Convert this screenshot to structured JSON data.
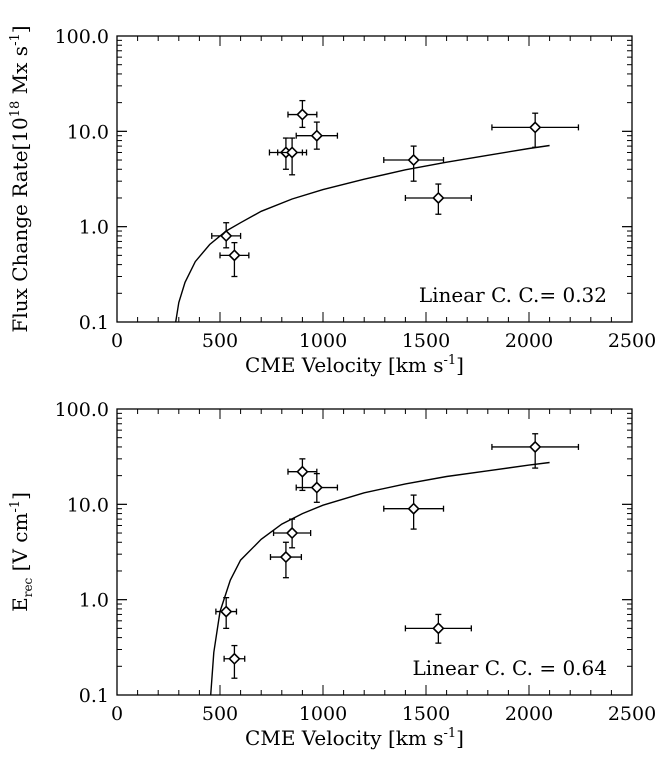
{
  "chart_data": [
    {
      "type": "scatter",
      "xlabel": "CME Velocity [km s",
      "xlabel_sup": "-1",
      "xlabel_end": "]",
      "ylabel": "Flux Change Rate[10",
      "ylabel_sup1": "18",
      "ylabel_mid": " Mx s",
      "ylabel_sup2": "-1",
      "ylabel_end": "]",
      "xlim": [
        0,
        2500
      ],
      "ylim": [
        0.1,
        100
      ],
      "yscale": "log",
      "xticks": [
        0,
        500,
        1000,
        1500,
        2000,
        2500
      ],
      "xtick_labels": [
        "0",
        "500",
        "1000",
        "1500",
        "2000",
        "2500"
      ],
      "yticks": [
        0.1,
        1,
        10,
        100
      ],
      "ytick_labels": [
        "0.1",
        "1.0",
        "10.0",
        "100.0"
      ],
      "annotation": "Linear C. C.= 0.32",
      "marker": "diamond",
      "points": [
        {
          "x": 530,
          "y": 0.8,
          "xerr": 70,
          "ylo": 0.6,
          "yhi": 1.1
        },
        {
          "x": 570,
          "y": 0.5,
          "xerr": 70,
          "ylo": 0.3,
          "yhi": 0.68
        },
        {
          "x": 820,
          "y": 6.0,
          "xerr": 80,
          "ylo": 4.0,
          "yhi": 8.5
        },
        {
          "x": 850,
          "y": 6.0,
          "xerr": 70,
          "ylo": 3.5,
          "yhi": 8.5
        },
        {
          "x": 900,
          "y": 15.0,
          "xerr": 70,
          "ylo": 11.0,
          "yhi": 21.0
        },
        {
          "x": 970,
          "y": 9.0,
          "xerr": 100,
          "ylo": 6.5,
          "yhi": 12.5
        },
        {
          "x": 1440,
          "y": 5.0,
          "xerr": 145,
          "ylo": 3.0,
          "yhi": 7.0
        },
        {
          "x": 1560,
          "y": 2.0,
          "xerr": 160,
          "ylo": 1.35,
          "yhi": 2.8
        },
        {
          "x": 2030,
          "y": 11.0,
          "xerr": 210,
          "ylo": 6.8,
          "yhi": 15.5
        }
      ],
      "fit_curve": {
        "x": [
          285,
          300,
          330,
          380,
          450,
          530,
          600,
          700,
          850,
          1000,
          1200,
          1400,
          1600,
          1800,
          2000,
          2100
        ],
        "y": [
          0.1,
          0.16,
          0.26,
          0.43,
          0.65,
          0.9,
          1.1,
          1.45,
          1.95,
          2.45,
          3.15,
          3.95,
          4.75,
          5.6,
          6.6,
          7.1
        ]
      }
    },
    {
      "type": "scatter",
      "xlabel": "CME Velocity [km s",
      "xlabel_sup": "-1",
      "xlabel_end": "]",
      "ylabel": "E",
      "ylabel_sub": "rec",
      "ylabel_mid": " [V cm",
      "ylabel_sup2": "-1",
      "ylabel_end": "]",
      "xlim": [
        0,
        2500
      ],
      "ylim": [
        0.1,
        100
      ],
      "yscale": "log",
      "xticks": [
        0,
        500,
        1000,
        1500,
        2000,
        2500
      ],
      "xtick_labels": [
        "0",
        "500",
        "1000",
        "1500",
        "2000",
        "2500"
      ],
      "yticks": [
        0.1,
        1,
        10,
        100
      ],
      "ytick_labels": [
        "0.1",
        "1.0",
        "10.0",
        "100.0"
      ],
      "annotation": "Linear C. C. = 0.64",
      "marker": "diamond",
      "points": [
        {
          "x": 530,
          "y": 0.75,
          "xerr": 50,
          "ylo": 0.5,
          "yhi": 1.05
        },
        {
          "x": 570,
          "y": 0.24,
          "xerr": 50,
          "ylo": 0.15,
          "yhi": 0.33
        },
        {
          "x": 820,
          "y": 2.8,
          "xerr": 75,
          "ylo": 1.7,
          "yhi": 4.0
        },
        {
          "x": 850,
          "y": 5.0,
          "xerr": 90,
          "ylo": 3.5,
          "yhi": 7.0
        },
        {
          "x": 900,
          "y": 22.0,
          "xerr": 70,
          "ylo": 14.0,
          "yhi": 30.0
        },
        {
          "x": 970,
          "y": 15.0,
          "xerr": 100,
          "ylo": 10.5,
          "yhi": 21.0
        },
        {
          "x": 1440,
          "y": 9.0,
          "xerr": 145,
          "ylo": 5.5,
          "yhi": 12.5
        },
        {
          "x": 1560,
          "y": 0.5,
          "xerr": 160,
          "ylo": 0.35,
          "yhi": 0.7
        },
        {
          "x": 2030,
          "y": 40.0,
          "xerr": 210,
          "ylo": 24.0,
          "yhi": 55.0
        }
      ],
      "fit_curve": {
        "x": [
          455,
          470,
          500,
          550,
          600,
          700,
          800,
          900,
          1000,
          1200,
          1400,
          1600,
          1800,
          2000,
          2100
        ],
        "y": [
          0.1,
          0.28,
          0.75,
          1.6,
          2.6,
          4.3,
          6.2,
          8.0,
          9.8,
          13.2,
          16.4,
          19.6,
          22.5,
          25.8,
          27.5
        ]
      }
    }
  ]
}
